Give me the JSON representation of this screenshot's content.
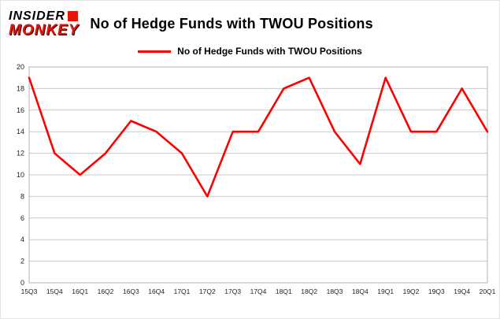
{
  "header": {
    "logo_line1": "INSIDER",
    "logo_line2": "MONKEY",
    "title": "No of Hedge Funds with TWOU Positions"
  },
  "legend": {
    "label": "No of Hedge Funds with TWOU Positions",
    "color": "#ff0000"
  },
  "chart_data": {
    "type": "line",
    "title": "No of Hedge Funds with TWOU Positions",
    "categories": [
      "15Q3",
      "15Q4",
      "16Q1",
      "16Q2",
      "16Q3",
      "16Q4",
      "17Q1",
      "17Q2",
      "17Q3",
      "17Q4",
      "18Q1",
      "18Q2",
      "18Q3",
      "18Q4",
      "19Q1",
      "19Q2",
      "19Q3",
      "19Q4",
      "20Q1"
    ],
    "values": [
      19,
      12,
      10,
      12,
      15,
      14,
      12,
      8,
      14,
      14,
      18,
      19,
      14,
      11,
      19,
      14,
      14,
      18,
      14
    ],
    "xlabel": "",
    "ylabel": "",
    "ylim": [
      0,
      20
    ],
    "ytick_step": 2,
    "grid": true,
    "line_color": "#ff0000",
    "legend_position": "top"
  }
}
